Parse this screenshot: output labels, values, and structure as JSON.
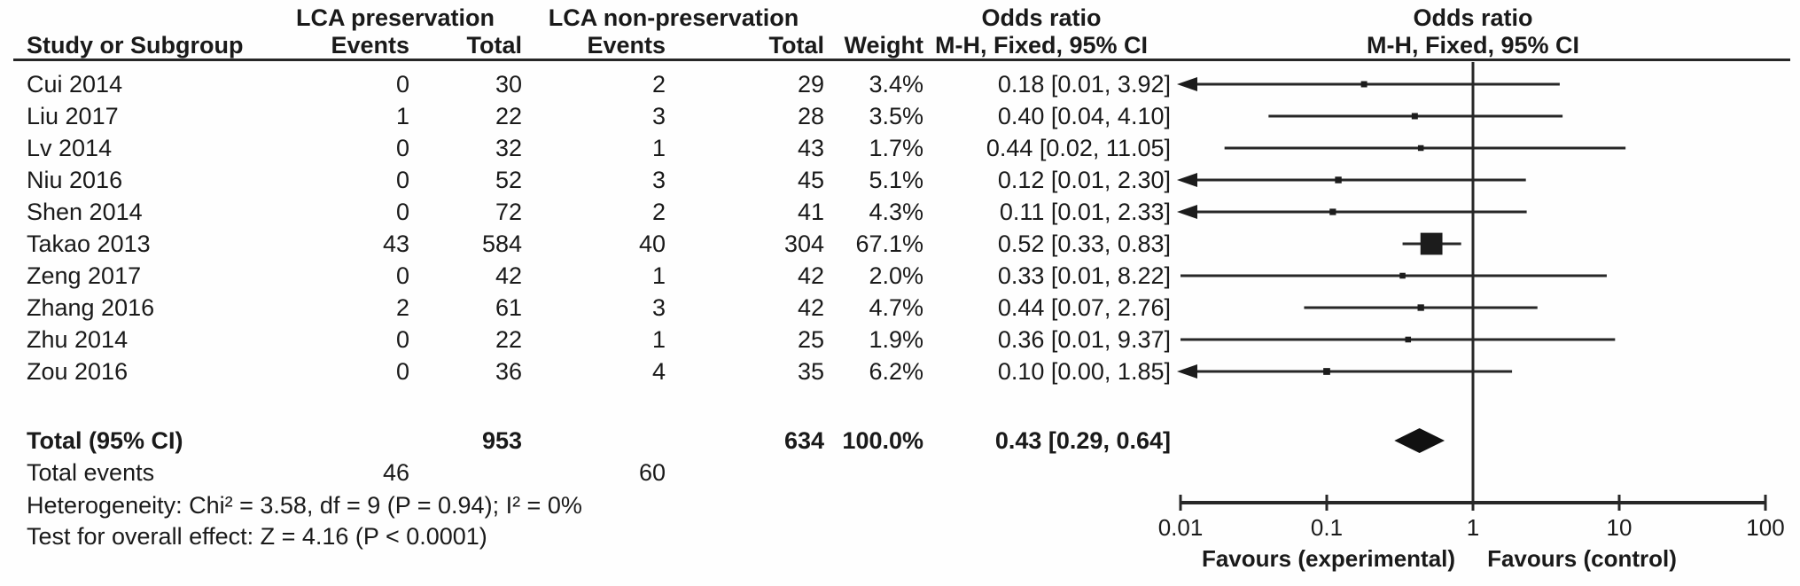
{
  "header": {
    "group1": "LCA preservation",
    "group2": "LCA non-preservation",
    "or_col_title": "Odds ratio",
    "or_col_subtitle": "M-H, Fixed, 95% CI",
    "plot_title": "Odds ratio",
    "plot_subtitle": "M-H, Fixed, 95% CI",
    "study_col": "Study or Subgroup",
    "events_col_1": "Events",
    "total_col_1": "Total",
    "events_col_2": "Events",
    "total_col_2": "Total",
    "weight_col": "Weight"
  },
  "chart_data": {
    "type": "forest_plot",
    "effect_measure": "Odds ratio (M-H, Fixed, 95% CI)",
    "x_axis": {
      "scale": "log",
      "min": 0.01,
      "max": 100,
      "ticks": [
        0.01,
        0.1,
        1,
        10,
        100
      ],
      "tick_labels": [
        "0.01",
        "0.1",
        "1",
        "10",
        "100"
      ],
      "reference_line": 1
    },
    "footer_left": "Favours (experimental)",
    "footer_right": "Favours (control)",
    "studies": [
      {
        "name": "Cui 2014",
        "events1": "0",
        "total1": "30",
        "events2": "2",
        "total2": "29",
        "weight": "3.4%",
        "weight_pct": 3.4,
        "or": 0.18,
        "ci_low": 0.01,
        "ci_high": 3.92,
        "label": "0.18 [0.01, 3.92]",
        "arrow_left": true
      },
      {
        "name": "Liu 2017",
        "events1": "1",
        "total1": "22",
        "events2": "3",
        "total2": "28",
        "weight": "3.5%",
        "weight_pct": 3.5,
        "or": 0.4,
        "ci_low": 0.04,
        "ci_high": 4.1,
        "label": "0.40 [0.04, 4.10]",
        "arrow_left": false
      },
      {
        "name": "Lv 2014",
        "events1": "0",
        "total1": "32",
        "events2": "1",
        "total2": "43",
        "weight": "1.7%",
        "weight_pct": 1.7,
        "or": 0.44,
        "ci_low": 0.02,
        "ci_high": 11.05,
        "label": "0.44 [0.02, 11.05]",
        "arrow_left": false
      },
      {
        "name": "Niu 2016",
        "events1": "0",
        "total1": "52",
        "events2": "3",
        "total2": "45",
        "weight": "5.1%",
        "weight_pct": 5.1,
        "or": 0.12,
        "ci_low": 0.01,
        "ci_high": 2.3,
        "label": "0.12 [0.01, 2.30]",
        "arrow_left": true
      },
      {
        "name": "Shen 2014",
        "events1": "0",
        "total1": "72",
        "events2": "2",
        "total2": "41",
        "weight": "4.3%",
        "weight_pct": 4.3,
        "or": 0.11,
        "ci_low": 0.01,
        "ci_high": 2.33,
        "label": "0.11 [0.01, 2.33]",
        "arrow_left": true
      },
      {
        "name": "Takao 2013",
        "events1": "43",
        "total1": "584",
        "events2": "40",
        "total2": "304",
        "weight": "67.1%",
        "weight_pct": 67.1,
        "or": 0.52,
        "ci_low": 0.33,
        "ci_high": 0.83,
        "label": "0.52 [0.33, 0.83]",
        "arrow_left": false
      },
      {
        "name": "Zeng 2017",
        "events1": "0",
        "total1": "42",
        "events2": "1",
        "total2": "42",
        "weight": "2.0%",
        "weight_pct": 2.0,
        "or": 0.33,
        "ci_low": 0.01,
        "ci_high": 8.22,
        "label": "0.33 [0.01, 8.22]",
        "arrow_left": false
      },
      {
        "name": "Zhang 2016",
        "events1": "2",
        "total1": "61",
        "events2": "3",
        "total2": "42",
        "weight": "4.7%",
        "weight_pct": 4.7,
        "or": 0.44,
        "ci_low": 0.07,
        "ci_high": 2.76,
        "label": "0.44 [0.07, 2.76]",
        "arrow_left": false
      },
      {
        "name": "Zhu 2014",
        "events1": "0",
        "total1": "22",
        "events2": "1",
        "total2": "25",
        "weight": "1.9%",
        "weight_pct": 1.9,
        "or": 0.36,
        "ci_low": 0.01,
        "ci_high": 9.37,
        "label": "0.36 [0.01, 9.37]",
        "arrow_left": false
      },
      {
        "name": "Zou 2016",
        "events1": "0",
        "total1": "36",
        "events2": "4",
        "total2": "35",
        "weight": "6.2%",
        "weight_pct": 6.2,
        "or": 0.1,
        "ci_low": 0.0,
        "ci_high": 1.85,
        "label": "0.10 [0.00, 1.85]",
        "arrow_left": true
      }
    ],
    "total": {
      "name": "Total (95% CI)",
      "total1": "953",
      "total2": "634",
      "weight": "100.0%",
      "or": 0.43,
      "ci_low": 0.29,
      "ci_high": 0.64,
      "label": "0.43 [0.29, 0.64]"
    },
    "total_events": {
      "label": "Total events",
      "events1": "46",
      "events2": "60"
    },
    "heterogeneity": "Heterogeneity: Chi² = 3.58, df = 9 (P = 0.94); I² = 0%",
    "overall_effect": "Test for overall effect: Z = 4.16 (P < 0.0001)"
  }
}
